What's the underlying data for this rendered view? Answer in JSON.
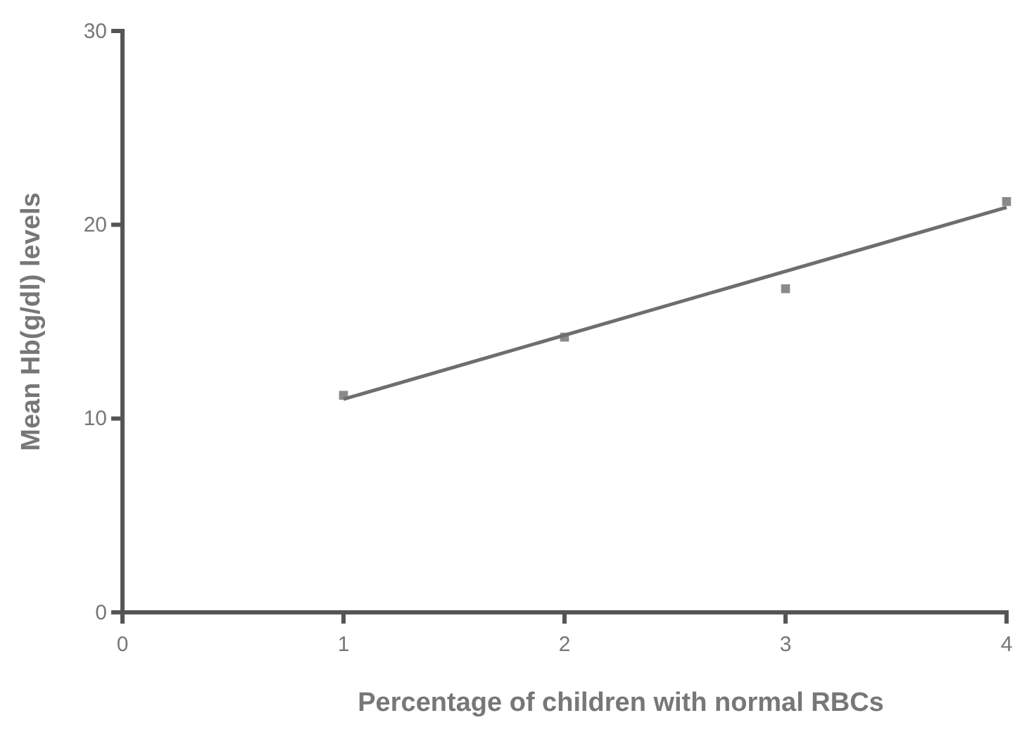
{
  "chart_data": {
    "type": "scatter",
    "xlabel": "Percentage of children with normal RBCs",
    "ylabel": "Mean Hb(g/dl) levels",
    "xlim": [
      0,
      4
    ],
    "xticks": [
      0,
      1,
      2,
      3,
      4
    ],
    "ylim": [
      0,
      30
    ],
    "yticks": [
      0,
      10,
      20,
      30
    ],
    "grid": false,
    "x": [
      1,
      2,
      3,
      4
    ],
    "series": [
      {
        "color": "#8a8a8a",
        "marker": "square",
        "values": [
          11.2,
          14.2,
          16.7,
          21.2
        ]
      },
      {
        "type": "line",
        "color": "#6e6e6e",
        "x": [
          1,
          4
        ],
        "values": [
          11.0,
          20.9
        ]
      }
    ]
  }
}
